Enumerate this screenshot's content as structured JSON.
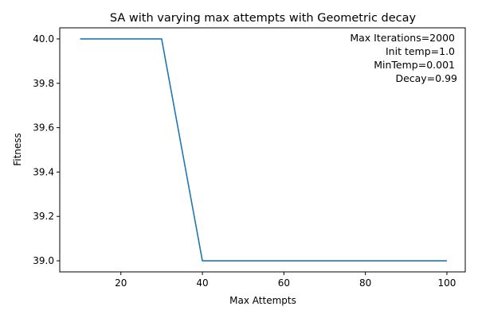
{
  "chart_data": {
    "type": "line",
    "title": "SA with varying max attempts with Geometric decay",
    "xlabel": "Max Attempts",
    "ylabel": "Fitness",
    "x": [
      10,
      20,
      30,
      40,
      50,
      60,
      70,
      80,
      90,
      100
    ],
    "series": [
      {
        "values": [
          40.0,
          40.0,
          40.0,
          39.0,
          39.0,
          39.0,
          39.0,
          39.0,
          39.0,
          39.0
        ],
        "color": "#1f77b4"
      }
    ],
    "xlim": [
      5,
      104.5
    ],
    "ylim": [
      38.95,
      40.05
    ],
    "xticks": [
      20,
      40,
      60,
      80,
      100
    ],
    "xtick_labels": [
      "20",
      "40",
      "60",
      "80",
      "100"
    ],
    "yticks": [
      39.0,
      39.2,
      39.4,
      39.6,
      39.8,
      40.0
    ],
    "ytick_labels": [
      "39.0",
      "39.2",
      "39.4",
      "39.6",
      "39.8",
      "40.0"
    ],
    "grid": false,
    "annotation_placement": "top-right",
    "annotation_lines": [
      "Max Iterations=2000",
      "Init temp=1.0",
      "MinTemp=0.001",
      "Decay=0.99"
    ]
  }
}
